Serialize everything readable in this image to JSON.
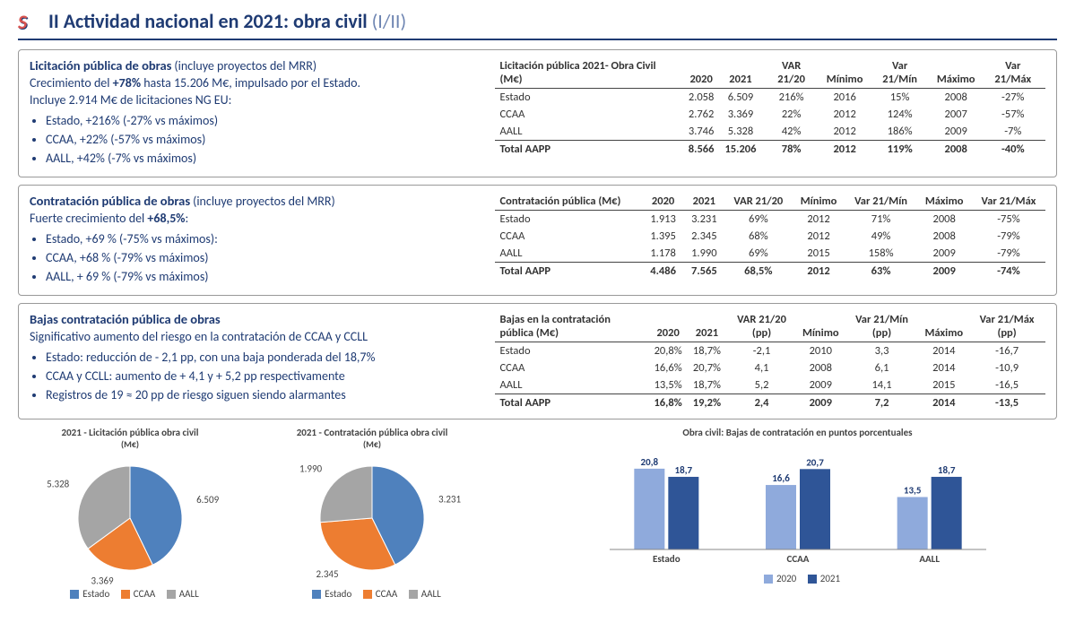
{
  "title": {
    "logo": "S",
    "main": "II Actividad nacional en 2021: obra civil",
    "sub": "(I/II)"
  },
  "colors": {
    "primary": "#1f3b73",
    "estado": "#4f81bd",
    "ccaa": "#ed7d31",
    "aall": "#a5a5a5",
    "bar2020": "#8faadc",
    "bar2021": "#2f5597",
    "border": "#999999"
  },
  "section1": {
    "title": "Licitación pública de obras",
    "titleNote": "(incluye proyectos del MRR)",
    "line1a": "Crecimiento del ",
    "line1b": "+78%",
    "line1c": " hasta 15.206 M€, impulsado por el Estado.",
    "line2": "Incluye 2.914 M€ de licitaciones NG EU:",
    "bullets": [
      "Estado, +216% (-27% vs máximos)",
      "CCAA, +22% (-57% vs máximos)",
      "AALL, +42% (-7% vs máximos)"
    ],
    "table": {
      "headerLabel": "Licitación pública 2021- Obra Civil (M€)",
      "cols": [
        "2020",
        "2021",
        "VAR 21/20",
        "Mínimo",
        "Var 21/Mín",
        "Máximo",
        "Var 21/Máx"
      ],
      "rows": [
        {
          "n": "Estado",
          "v": [
            "2.058",
            "6.509",
            "216%",
            "2016",
            "15%",
            "2008",
            "-27%"
          ]
        },
        {
          "n": "CCAA",
          "v": [
            "2.762",
            "3.369",
            "22%",
            "2012",
            "124%",
            "2007",
            "-57%"
          ]
        },
        {
          "n": "AALL",
          "v": [
            "3.746",
            "5.328",
            "42%",
            "2012",
            "186%",
            "2009",
            "-7%"
          ]
        }
      ],
      "total": {
        "n": "Total AAPP",
        "v": [
          "8.566",
          "15.206",
          "78%",
          "2012",
          "119%",
          "2008",
          "-40%"
        ]
      }
    }
  },
  "section2": {
    "title": "Contratación pública de obras",
    "titleNote": "(incluye proyectos del MRR)",
    "line1a": "Fuerte crecimiento del ",
    "line1b": "+68,5%",
    "line1c": ":",
    "bullets": [
      "Estado, +69 % (-75% vs máximos):",
      "CCAA, +68 % (-79% vs máximos)",
      "AALL, + 69 % (-79% vs máximos)"
    ],
    "table": {
      "headerLabel": "Contratación pública (M€)",
      "cols": [
        "2020",
        "2021",
        "VAR 21/20",
        "Mínimo",
        "Var 21/Mín",
        "Máximo",
        "Var 21/Máx"
      ],
      "rows": [
        {
          "n": "Estado",
          "v": [
            "1.913",
            "3.231",
            "69%",
            "2012",
            "71%",
            "2008",
            "-75%"
          ]
        },
        {
          "n": "CCAA",
          "v": [
            "1.395",
            "2.345",
            "68%",
            "2012",
            "49%",
            "2008",
            "-79%"
          ]
        },
        {
          "n": "AALL",
          "v": [
            "1.178",
            "1.990",
            "69%",
            "2015",
            "158%",
            "2009",
            "-79%"
          ]
        }
      ],
      "total": {
        "n": "Total AAPP",
        "v": [
          "4.486",
          "7.565",
          "68,5%",
          "2012",
          "63%",
          "2009",
          "-74%"
        ]
      }
    }
  },
  "section3": {
    "title": "Bajas contratación pública de obras",
    "line1": "Significativo aumento del riesgo en la contratación de CCAA y CCLL",
    "bullets": [
      "Estado: reducción de - 2,1 pp, con una baja ponderada del 18,7%",
      "CCAA y CCLL: aumento de + 4,1 y + 5,2 pp respectivamente",
      "Registros de 19 ≈ 20 pp de riesgo siguen siendo alarmantes"
    ],
    "table": {
      "headerLabel": "Bajas en la contratación pública (M€)",
      "cols": [
        "2020",
        "2021",
        "VAR 21/20 (pp)",
        "Mínimo",
        "Var 21/Mín (pp)",
        "Máximo",
        "Var 21/Máx (pp)"
      ],
      "rows": [
        {
          "n": "Estado",
          "v": [
            "20,8%",
            "18,7%",
            "-2,1",
            "2010",
            "3,3",
            "2014",
            "-16,7"
          ]
        },
        {
          "n": "CCAA",
          "v": [
            "16,6%",
            "20,7%",
            "4,1",
            "2008",
            "6,1",
            "2014",
            "-10,9"
          ]
        },
        {
          "n": "AALL",
          "v": [
            "13,5%",
            "18,7%",
            "5,2",
            "2009",
            "14,1",
            "2015",
            "-16,5"
          ]
        }
      ],
      "total": {
        "n": "Total AAPP",
        "v": [
          "16,8%",
          "19,2%",
          "2,4",
          "2009",
          "7,2",
          "2014",
          "-13,5"
        ]
      }
    }
  },
  "pie1": {
    "title": "2021 - Licitación pública obra civil",
    "sub": "(M€)",
    "slices": [
      {
        "label": "Estado",
        "value": 6509,
        "text": "6.509",
        "color": "#4f81bd"
      },
      {
        "label": "CCAA",
        "value": 3369,
        "text": "3.369",
        "color": "#ed7d31"
      },
      {
        "label": "AALL",
        "value": 5328,
        "text": "5.328",
        "color": "#a5a5a5"
      }
    ],
    "total": 15206
  },
  "pie2": {
    "title": "2021 - Contratación pública obra civil",
    "sub": "(M€)",
    "slices": [
      {
        "label": "Estado",
        "value": 3231,
        "text": "3.231",
        "color": "#4f81bd"
      },
      {
        "label": "CCAA",
        "value": 2345,
        "text": "2.345",
        "color": "#ed7d31"
      },
      {
        "label": "AALL",
        "value": 1990,
        "text": "1.990",
        "color": "#a5a5a5"
      }
    ],
    "total": 7566
  },
  "barChart": {
    "title": "Obra civil: Bajas de contratación en puntos porcentuales",
    "ymax": 24,
    "categories": [
      "Estado",
      "CCAA",
      "AALL"
    ],
    "series": [
      {
        "name": "2020",
        "color": "#8faadc",
        "values": [
          20.8,
          16.6,
          13.5
        ],
        "labels": [
          "20,8",
          "16,6",
          "13,5"
        ]
      },
      {
        "name": "2021",
        "color": "#2f5597",
        "values": [
          18.7,
          20.7,
          18.7
        ],
        "labels": [
          "18,7",
          "20,7",
          "18,7"
        ]
      }
    ]
  },
  "legend": {
    "estado": "Estado",
    "ccaa": "CCAA",
    "aall": "AALL",
    "y2020": "2020",
    "y2021": "2021"
  }
}
